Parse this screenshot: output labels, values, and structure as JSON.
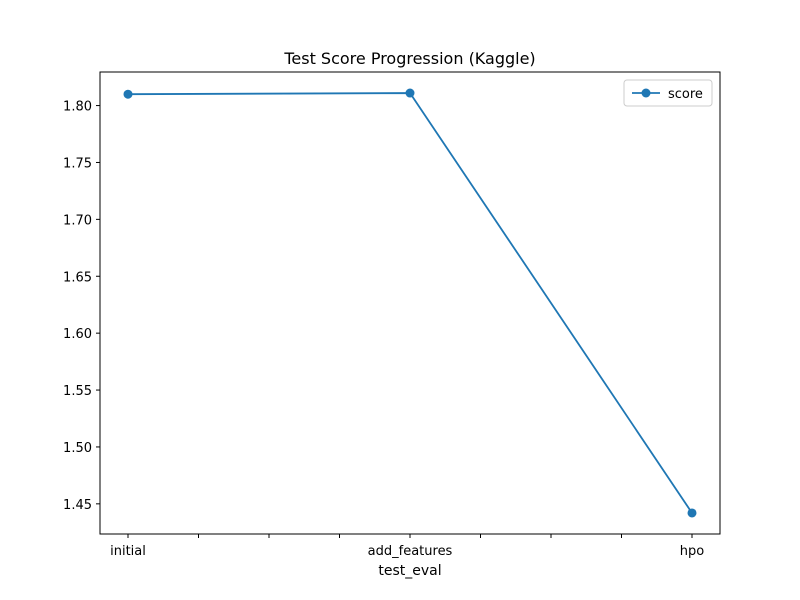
{
  "chart_data": {
    "type": "line",
    "title": "Test Score Progression (Kaggle)",
    "xlabel": "test_eval",
    "ylabel": "",
    "categories": [
      "initial",
      "add_features",
      "hpo"
    ],
    "x_minor_ticks": 6,
    "series": [
      {
        "name": "score",
        "values": [
          1.81,
          1.811,
          1.442
        ],
        "color": "#1f77b4",
        "marker": "circle"
      }
    ],
    "yticks": [
      1.45,
      1.5,
      1.55,
      1.6,
      1.65,
      1.7,
      1.75,
      1.8
    ],
    "ylim": [
      1.4235,
      1.8295
    ],
    "grid": false,
    "legend": {
      "position": "top-right",
      "entries": [
        "score"
      ]
    }
  }
}
